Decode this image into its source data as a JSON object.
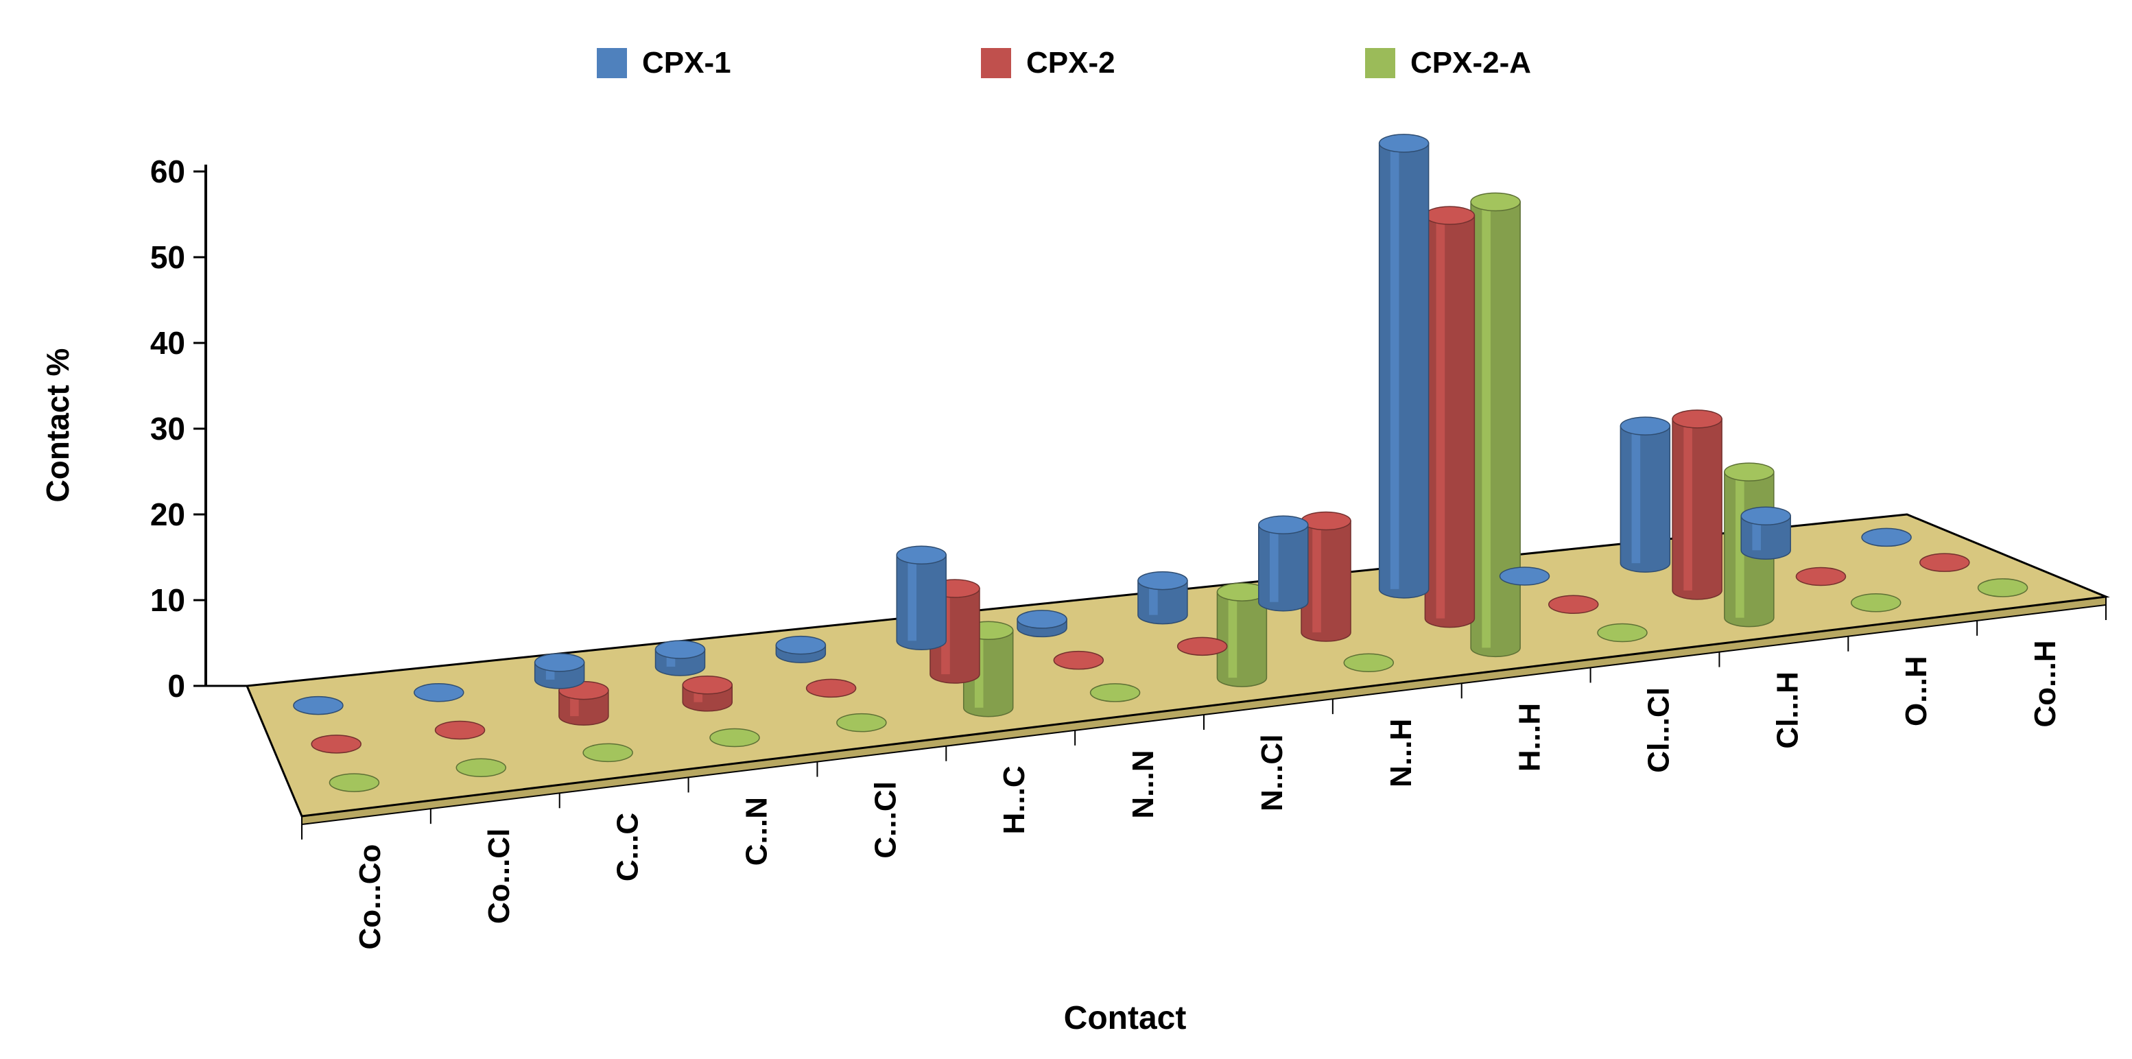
{
  "chart_data": {
    "type": "bar",
    "style": "3d-cylinder",
    "xlabel": "Contact",
    "ylabel": "Contact %",
    "ylim": [
      0,
      60
    ],
    "yticks": [
      0,
      10,
      20,
      30,
      40,
      50,
      60
    ],
    "grid": false,
    "legend_position": "top",
    "categories": [
      "Co...Co",
      "Co...Cl",
      "C...C",
      "C...N",
      "C...Cl",
      "H...C",
      "N...N",
      "N...Cl",
      "N...H",
      "H...H",
      "Cl...Cl",
      "Cl...H",
      "O...H",
      "Co...H"
    ],
    "series": [
      {
        "name": "CPX-1",
        "color": "#4F81BD",
        "values": [
          0,
          0,
          2,
          2,
          1,
          10,
          1,
          4,
          9,
          52,
          0,
          16,
          4,
          0
        ]
      },
      {
        "name": "CPX-2",
        "color": "#C0504D",
        "values": [
          0,
          0,
          3,
          2,
          0,
          10,
          0,
          0,
          13,
          47,
          0,
          20,
          0,
          0
        ]
      },
      {
        "name": "CPX-2-A",
        "color": "#9BBB59",
        "values": [
          0,
          0,
          0,
          0,
          0,
          9,
          0,
          10,
          0,
          52,
          0,
          17,
          0,
          0
        ]
      }
    ],
    "floor_color": "#D8C77F"
  }
}
